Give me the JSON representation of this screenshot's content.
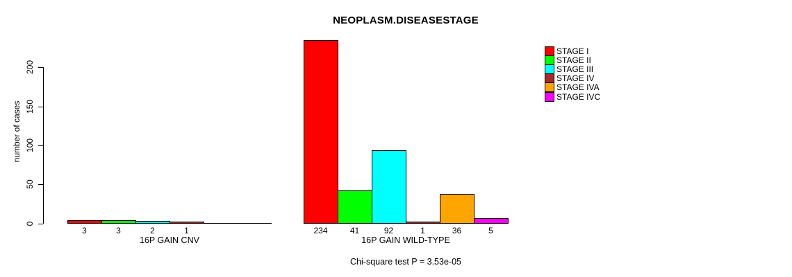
{
  "title": "NEOPLASM.DISEASESTAGE",
  "y_axis_label": "number of cases",
  "footer_note": "Chi-square test P = 3.53e-05",
  "legend": {
    "items": [
      {
        "label": "STAGE I",
        "color": "#FF0000"
      },
      {
        "label": "STAGE II",
        "color": "#00FF00"
      },
      {
        "label": "STAGE III",
        "color": "#00FFFF"
      },
      {
        "label": "STAGE IV",
        "color": "#A52A2A"
      },
      {
        "label": "STAGE IVA",
        "color": "#FFA500"
      },
      {
        "label": "STAGE IVC",
        "color": "#FF00FF"
      }
    ]
  },
  "chart_data": {
    "type": "bar",
    "title": "NEOPLASM.DISEASESTAGE",
    "ylabel": "number of cases",
    "xlabel": "",
    "ylim": [
      0,
      240
    ],
    "yticks": [
      0,
      50,
      100,
      150,
      200
    ],
    "grid": false,
    "legend_position": "top-right",
    "series_labels": [
      "STAGE I",
      "STAGE II",
      "STAGE III",
      "STAGE IV",
      "STAGE IVA",
      "STAGE IVC"
    ],
    "colors": [
      "#FF0000",
      "#00FF00",
      "#00FFFF",
      "#A52A2A",
      "#FFA500",
      "#FF00FF"
    ],
    "groups": [
      {
        "label": "16P GAIN CNV",
        "values": [
          3,
          3,
          2,
          1,
          0,
          0
        ],
        "bar_labels": [
          "3",
          "3",
          "2",
          "1",
          "",
          ""
        ]
      },
      {
        "label": "16P GAIN WILD-TYPE",
        "values": [
          234,
          41,
          92,
          1,
          36,
          5
        ],
        "bar_labels": [
          "234",
          "41",
          "92",
          "1",
          "36",
          "5"
        ]
      }
    ],
    "annotation": "Chi-square test P = 3.53e-05"
  }
}
